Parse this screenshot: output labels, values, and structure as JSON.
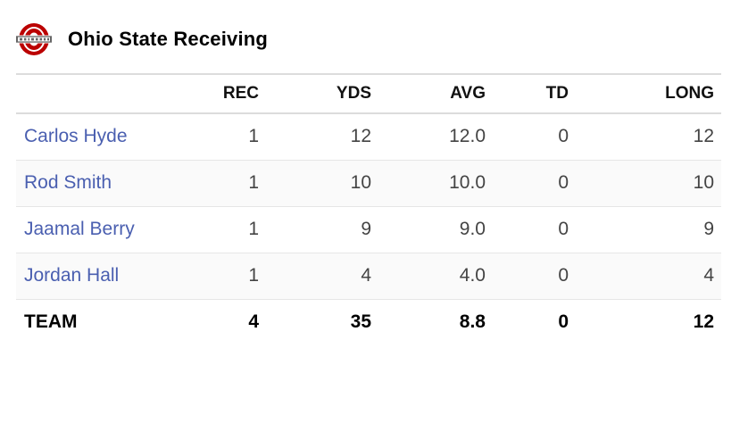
{
  "header": {
    "title": "Ohio State Receiving",
    "logo_icon": "ohio-state-block-o-logo-icon",
    "logo_color": "#bb0000"
  },
  "table": {
    "columns": [
      "",
      "REC",
      "YDS",
      "AVG",
      "TD",
      "LONG"
    ],
    "rows": [
      {
        "name": "Carlos Hyde",
        "rec": "1",
        "yds": "12",
        "avg": "12.0",
        "td": "0",
        "long": "12"
      },
      {
        "name": "Rod Smith",
        "rec": "1",
        "yds": "10",
        "avg": "10.0",
        "td": "0",
        "long": "10"
      },
      {
        "name": "Jaamal Berry",
        "rec": "1",
        "yds": "9",
        "avg": "9.0",
        "td": "0",
        "long": "9"
      },
      {
        "name": "Jordan Hall",
        "rec": "1",
        "yds": "4",
        "avg": "4.0",
        "td": "0",
        "long": "4"
      }
    ],
    "total": {
      "name": "TEAM",
      "rec": "4",
      "yds": "35",
      "avg": "8.8",
      "td": "0",
      "long": "12"
    },
    "link_color": "#4a5fb0"
  }
}
